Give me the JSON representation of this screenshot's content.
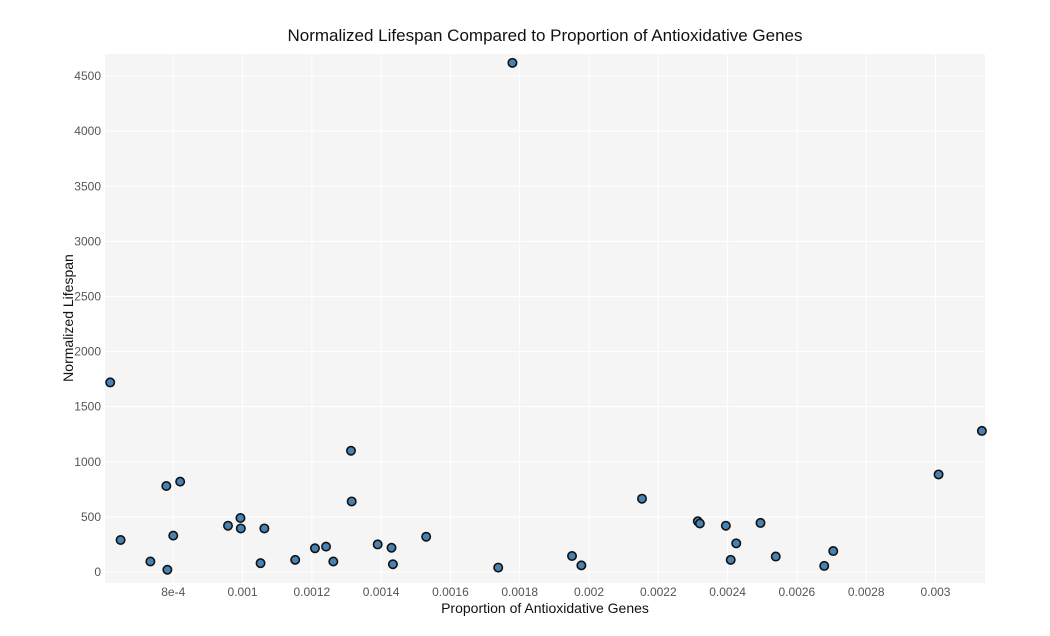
{
  "chart_data": {
    "type": "scatter",
    "title": "Normalized Lifespan Compared to Proportion of Antioxidative Genes",
    "xlabel": "Proportion of Antioxidative Genes",
    "ylabel": "Normalized Lifespan",
    "xlim": [
      0.000603,
      0.003143
    ],
    "ylim": [
      -100,
      4700
    ],
    "grid": true,
    "colors": {
      "panel_background": "#f5f5f5",
      "grid": "#ffffff",
      "point_fill": "#4682b4",
      "point_stroke": "#111111"
    },
    "x_ticks": [
      {
        "value": 0.0008,
        "label": "8e-4"
      },
      {
        "value": 0.001,
        "label": "0.001"
      },
      {
        "value": 0.0012,
        "label": "0.0012"
      },
      {
        "value": 0.0014,
        "label": "0.0014"
      },
      {
        "value": 0.0016,
        "label": "0.0016"
      },
      {
        "value": 0.0018,
        "label": "0.0018"
      },
      {
        "value": 0.002,
        "label": "0.002"
      },
      {
        "value": 0.0022,
        "label": "0.0022"
      },
      {
        "value": 0.0024,
        "label": "0.0024"
      },
      {
        "value": 0.0026,
        "label": "0.0026"
      },
      {
        "value": 0.0028,
        "label": "0.0028"
      },
      {
        "value": 0.003,
        "label": "0.003"
      }
    ],
    "y_ticks": [
      {
        "value": 0,
        "label": "0"
      },
      {
        "value": 500,
        "label": "500"
      },
      {
        "value": 1000,
        "label": "1000"
      },
      {
        "value": 1500,
        "label": "1500"
      },
      {
        "value": 2000,
        "label": "2000"
      },
      {
        "value": 2500,
        "label": "2500"
      },
      {
        "value": 3000,
        "label": "3000"
      },
      {
        "value": 3500,
        "label": "3500"
      },
      {
        "value": 4000,
        "label": "4000"
      },
      {
        "value": 4500,
        "label": "4500"
      }
    ],
    "points": [
      {
        "x": 0.000618,
        "y": 1720
      },
      {
        "x": 0.000648,
        "y": 290
      },
      {
        "x": 0.000734,
        "y": 95
      },
      {
        "x": 0.00078,
        "y": 780
      },
      {
        "x": 0.000783,
        "y": 20
      },
      {
        "x": 0.0008,
        "y": 330
      },
      {
        "x": 0.00082,
        "y": 820
      },
      {
        "x": 0.000958,
        "y": 420
      },
      {
        "x": 0.000994,
        "y": 490
      },
      {
        "x": 0.000995,
        "y": 395
      },
      {
        "x": 0.001052,
        "y": 80
      },
      {
        "x": 0.001063,
        "y": 395
      },
      {
        "x": 0.001152,
        "y": 110
      },
      {
        "x": 0.001209,
        "y": 215
      },
      {
        "x": 0.001241,
        "y": 230
      },
      {
        "x": 0.001262,
        "y": 95
      },
      {
        "x": 0.001313,
        "y": 1100
      },
      {
        "x": 0.001315,
        "y": 640
      },
      {
        "x": 0.00139,
        "y": 250
      },
      {
        "x": 0.00143,
        "y": 220
      },
      {
        "x": 0.001434,
        "y": 70
      },
      {
        "x": 0.00153,
        "y": 320
      },
      {
        "x": 0.001738,
        "y": 40
      },
      {
        "x": 0.001779,
        "y": 4620
      },
      {
        "x": 0.001951,
        "y": 145
      },
      {
        "x": 0.001978,
        "y": 60
      },
      {
        "x": 0.002153,
        "y": 665
      },
      {
        "x": 0.002314,
        "y": 460
      },
      {
        "x": 0.00232,
        "y": 440
      },
      {
        "x": 0.002395,
        "y": 420
      },
      {
        "x": 0.002409,
        "y": 110
      },
      {
        "x": 0.002425,
        "y": 260
      },
      {
        "x": 0.002495,
        "y": 445
      },
      {
        "x": 0.002539,
        "y": 140
      },
      {
        "x": 0.002679,
        "y": 55
      },
      {
        "x": 0.002705,
        "y": 190
      },
      {
        "x": 0.003009,
        "y": 885
      },
      {
        "x": 0.003134,
        "y": 1280
      }
    ]
  }
}
